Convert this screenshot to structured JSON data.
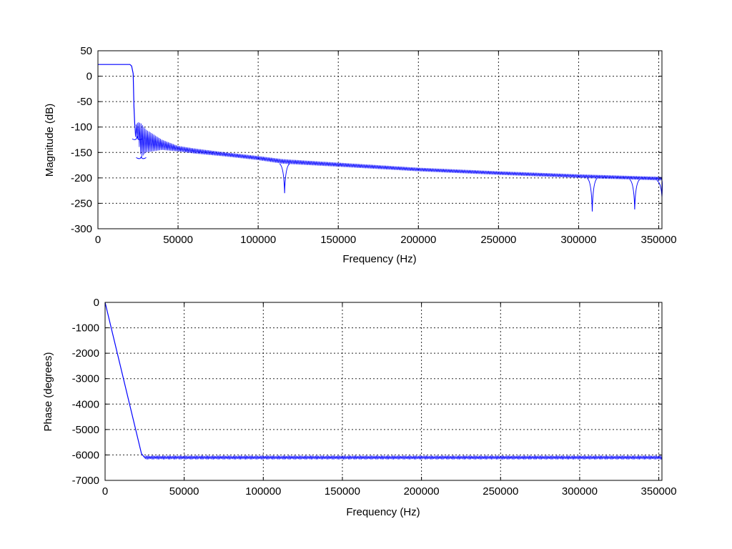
{
  "chart_data": [
    {
      "type": "line",
      "title": "",
      "xlabel": "Frequency (Hz)",
      "ylabel": "Magnitude (dB)",
      "xlim": [
        0,
        352000
      ],
      "ylim": [
        -300,
        50
      ],
      "xticks": [
        0,
        50000,
        100000,
        150000,
        200000,
        250000,
        300000,
        350000
      ],
      "xtick_labels": [
        "0",
        "50000",
        "100000",
        "150000",
        "200000",
        "250000",
        "300000",
        "350000"
      ],
      "yticks": [
        50,
        0,
        -50,
        -100,
        -150,
        -200,
        -250,
        -300
      ],
      "ytick_labels": [
        "50",
        "0",
        "-50",
        "-100",
        "-150",
        "-200",
        "-250",
        "-300"
      ],
      "grid": true,
      "series": [
        {
          "color": "#0000ff",
          "x": [
            0,
            20000,
            21000,
            22000,
            22500,
            23000,
            25000,
            27000,
            30000,
            40000,
            50000,
            60000,
            80000,
            100000,
            115000,
            150000,
            200000,
            250000,
            300000,
            352000
          ],
          "upper": [
            23,
            23,
            20,
            5,
            -60,
            -98,
            -90,
            -93,
            -105,
            -125,
            -137,
            -142,
            -150,
            -157,
            -163,
            -170,
            -180,
            -187,
            -193,
            -198
          ],
          "lower": [
            23,
            23,
            20,
            5,
            -60,
            -118,
            -125,
            -160,
            -150,
            -145,
            -148,
            -152,
            -158,
            -165,
            -172,
            -178,
            -187,
            -194,
            -200,
            -205
          ],
          "notches": [
            {
              "x": 24500,
              "y": -118
            },
            {
              "x": 27000,
              "y": -158
            },
            {
              "x": 116500,
              "y": -230
            },
            {
              "x": 308500,
              "y": -266
            },
            {
              "x": 335000,
              "y": -262
            },
            {
              "x": 352000,
              "y": -238
            }
          ]
        }
      ]
    },
    {
      "type": "line",
      "title": "",
      "xlabel": "Frequency (Hz)",
      "ylabel": "Phase (degrees)",
      "xlim": [
        0,
        352000
      ],
      "ylim": [
        -7000,
        0
      ],
      "xticks": [
        0,
        50000,
        100000,
        150000,
        200000,
        250000,
        300000,
        350000
      ],
      "xtick_labels": [
        "0",
        "50000",
        "100000",
        "150000",
        "200000",
        "250000",
        "300000",
        "350000"
      ],
      "yticks": [
        0,
        -1000,
        -2000,
        -3000,
        -4000,
        -5000,
        -6000,
        -7000
      ],
      "ytick_labels": [
        "0",
        "-1000",
        "-2000",
        "-3000",
        "-4000",
        "-5000",
        "-6000",
        "-7000"
      ],
      "grid": true,
      "series": [
        {
          "color": "#0000ff",
          "x": [
            0,
            23000,
            25000,
            352000
          ],
          "y": [
            0,
            -5950,
            -6100,
            -6100
          ],
          "ripple_center": -6100,
          "ripple_amplitude": 80
        }
      ]
    }
  ]
}
